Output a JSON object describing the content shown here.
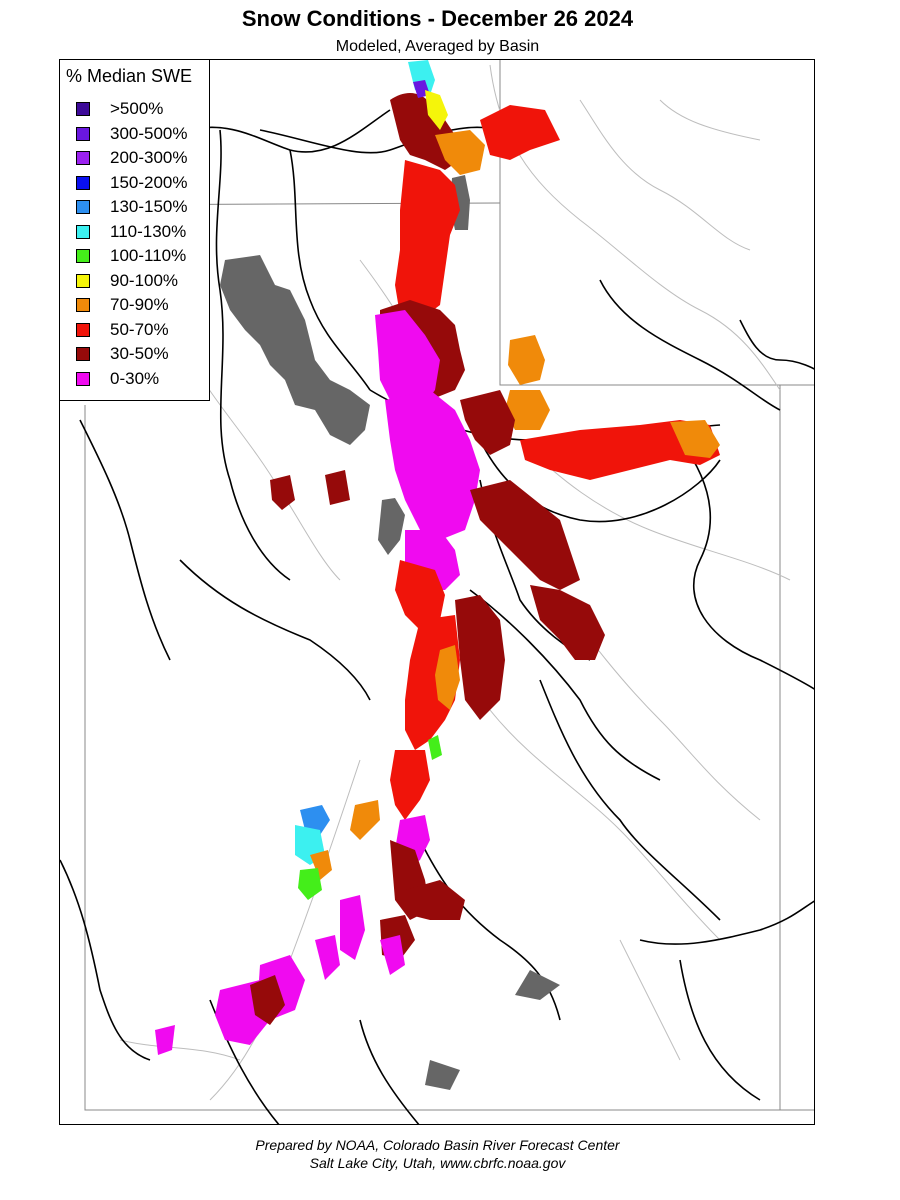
{
  "title": "Snow Conditions - December 26 2024",
  "subtitle": "Modeled, Averaged by Basin",
  "legend": {
    "title": "% Median SWE",
    "items": [
      {
        "label": ">500%",
        "color": "#3d0a99"
      },
      {
        "label": "300-500%",
        "color": "#6a17e0"
      },
      {
        "label": "200-300%",
        "color": "#9b22f0"
      },
      {
        "label": "150-200%",
        "color": "#0a10f0"
      },
      {
        "label": "130-150%",
        "color": "#2d8ff0"
      },
      {
        "label": "110-130%",
        "color": "#3cf0f0"
      },
      {
        "label": "100-110%",
        "color": "#44ee1a"
      },
      {
        "label": "90-100%",
        "color": "#f5f50a"
      },
      {
        "label": "70-90%",
        "color": "#f08a0a"
      },
      {
        "label": "50-70%",
        "color": "#f0140a"
      },
      {
        "label": "30-50%",
        "color": "#960a0a"
      },
      {
        "label": "0-30%",
        "color": "#f00af0"
      }
    ]
  },
  "lake_color": "#666666",
  "footer": {
    "line1": "Prepared by NOAA, Colorado Basin River Forecast Center",
    "line2": "Salt Lake City, Utah, www.cbrfc.noaa.gov"
  }
}
